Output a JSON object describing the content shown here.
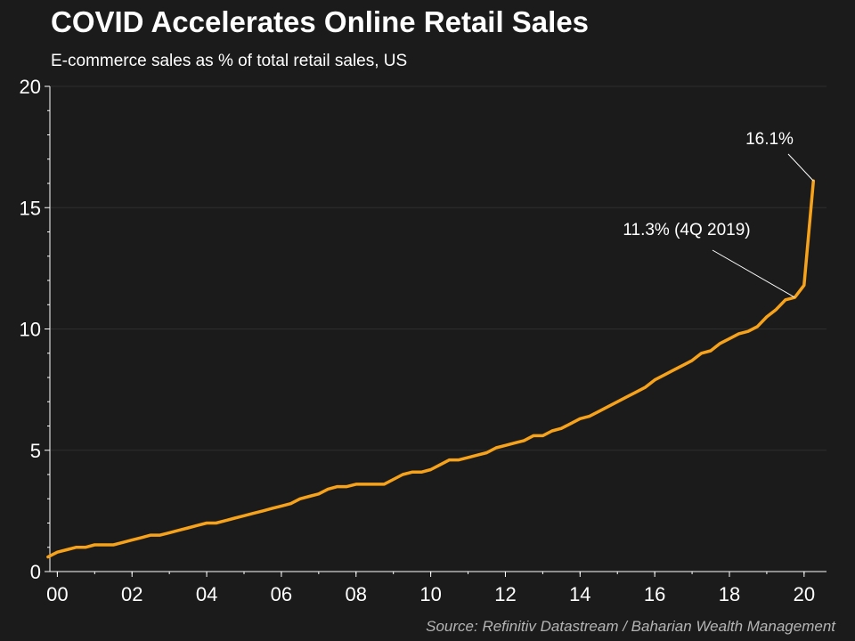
{
  "chart_data": {
    "type": "line",
    "title": "COVID Accelerates Online Retail Sales",
    "subtitle": "E-commerce sales as % of total retail sales, US",
    "source": "Source: Refinitiv Datastream / Baharian Wealth Management",
    "xlabel": "",
    "ylabel": "",
    "xlim": [
      1999.8,
      2020.6
    ],
    "ylim": [
      0,
      20
    ],
    "y_ticks": [
      0,
      5,
      10,
      15,
      20
    ],
    "x_ticks": [
      {
        "value": 2000,
        "label": "00"
      },
      {
        "value": 2002,
        "label": "02"
      },
      {
        "value": 2004,
        "label": "04"
      },
      {
        "value": 2006,
        "label": "06"
      },
      {
        "value": 2008,
        "label": "08"
      },
      {
        "value": 2010,
        "label": "10"
      },
      {
        "value": 2012,
        "label": "12"
      },
      {
        "value": 2014,
        "label": "14"
      },
      {
        "value": 2016,
        "label": "16"
      },
      {
        "value": 2018,
        "label": "18"
      },
      {
        "value": 2020,
        "label": "20"
      }
    ],
    "grid": true,
    "line_color": "#f7a21b",
    "series": [
      {
        "name": "",
        "points": [
          [
            1999.75,
            0.6
          ],
          [
            2000.0,
            0.8
          ],
          [
            2000.25,
            0.9
          ],
          [
            2000.5,
            1.0
          ],
          [
            2000.75,
            1.0
          ],
          [
            2001.0,
            1.1
          ],
          [
            2001.25,
            1.1
          ],
          [
            2001.5,
            1.1
          ],
          [
            2001.75,
            1.2
          ],
          [
            2002.0,
            1.3
          ],
          [
            2002.25,
            1.4
          ],
          [
            2002.5,
            1.5
          ],
          [
            2002.75,
            1.5
          ],
          [
            2003.0,
            1.6
          ],
          [
            2003.25,
            1.7
          ],
          [
            2003.5,
            1.8
          ],
          [
            2003.75,
            1.9
          ],
          [
            2004.0,
            2.0
          ],
          [
            2004.25,
            2.0
          ],
          [
            2004.5,
            2.1
          ],
          [
            2004.75,
            2.2
          ],
          [
            2005.0,
            2.3
          ],
          [
            2005.25,
            2.4
          ],
          [
            2005.5,
            2.5
          ],
          [
            2005.75,
            2.6
          ],
          [
            2006.0,
            2.7
          ],
          [
            2006.25,
            2.8
          ],
          [
            2006.5,
            3.0
          ],
          [
            2006.75,
            3.1
          ],
          [
            2007.0,
            3.2
          ],
          [
            2007.25,
            3.4
          ],
          [
            2007.5,
            3.5
          ],
          [
            2007.75,
            3.5
          ],
          [
            2008.0,
            3.6
          ],
          [
            2008.25,
            3.6
          ],
          [
            2008.5,
            3.6
          ],
          [
            2008.75,
            3.6
          ],
          [
            2009.0,
            3.8
          ],
          [
            2009.25,
            4.0
          ],
          [
            2009.5,
            4.1
          ],
          [
            2009.75,
            4.1
          ],
          [
            2010.0,
            4.2
          ],
          [
            2010.25,
            4.4
          ],
          [
            2010.5,
            4.6
          ],
          [
            2010.75,
            4.6
          ],
          [
            2011.0,
            4.7
          ],
          [
            2011.25,
            4.8
          ],
          [
            2011.5,
            4.9
          ],
          [
            2011.75,
            5.1
          ],
          [
            2012.0,
            5.2
          ],
          [
            2012.25,
            5.3
          ],
          [
            2012.5,
            5.4
          ],
          [
            2012.75,
            5.6
          ],
          [
            2013.0,
            5.6
          ],
          [
            2013.25,
            5.8
          ],
          [
            2013.5,
            5.9
          ],
          [
            2013.75,
            6.1
          ],
          [
            2014.0,
            6.3
          ],
          [
            2014.25,
            6.4
          ],
          [
            2014.5,
            6.6
          ],
          [
            2014.75,
            6.8
          ],
          [
            2015.0,
            7.0
          ],
          [
            2015.25,
            7.2
          ],
          [
            2015.5,
            7.4
          ],
          [
            2015.75,
            7.6
          ],
          [
            2016.0,
            7.9
          ],
          [
            2016.25,
            8.1
          ],
          [
            2016.5,
            8.3
          ],
          [
            2016.75,
            8.5
          ],
          [
            2017.0,
            8.7
          ],
          [
            2017.25,
            9.0
          ],
          [
            2017.5,
            9.1
          ],
          [
            2017.75,
            9.4
          ],
          [
            2018.0,
            9.6
          ],
          [
            2018.25,
            9.8
          ],
          [
            2018.5,
            9.9
          ],
          [
            2018.75,
            10.1
          ],
          [
            2019.0,
            10.5
          ],
          [
            2019.25,
            10.8
          ],
          [
            2019.5,
            11.2
          ],
          [
            2019.75,
            11.3
          ],
          [
            2020.0,
            11.8
          ],
          [
            2020.25,
            16.1
          ]
        ]
      }
    ],
    "annotations": [
      {
        "text": "16.1%",
        "x": 2020.25,
        "y": 16.1
      },
      {
        "text": "11.3% (4Q 2019)",
        "x": 2019.75,
        "y": 11.3
      }
    ]
  }
}
